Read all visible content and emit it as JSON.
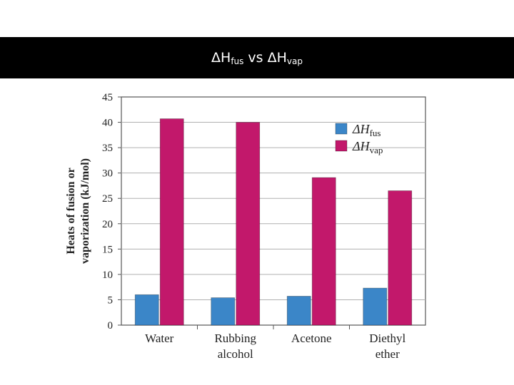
{
  "slide": {
    "title_left": "ΔH",
    "title_left_sub": "fus",
    "title_vs": "vs",
    "title_right": "ΔH",
    "title_right_sub": "vap"
  },
  "colors": {
    "fus": "#3b86c8",
    "vap": "#c2186b",
    "grid": "#b0b0b0",
    "axis": "#555555"
  },
  "chart_data": {
    "type": "bar",
    "title": "ΔHfus vs ΔHvap",
    "ylabel_line1": "Heats of fusion or",
    "ylabel_line2": "vaporization (kJ/mol)",
    "ylim": [
      0,
      45
    ],
    "yticks": [
      0,
      5,
      10,
      15,
      20,
      25,
      30,
      35,
      40,
      45
    ],
    "grid": true,
    "legend_position": "top-right",
    "categories": [
      [
        "Water"
      ],
      [
        "Rubbing",
        "alcohol"
      ],
      [
        "Acetone"
      ],
      [
        "Diethyl",
        "ether"
      ]
    ],
    "series": [
      {
        "name": "ΔH",
        "sub": "fus",
        "color_key": "fus",
        "values": [
          6.0,
          5.4,
          5.7,
          7.3
        ]
      },
      {
        "name": "ΔH",
        "sub": "vap",
        "color_key": "vap",
        "values": [
          40.7,
          40.0,
          29.1,
          26.5
        ]
      }
    ]
  }
}
